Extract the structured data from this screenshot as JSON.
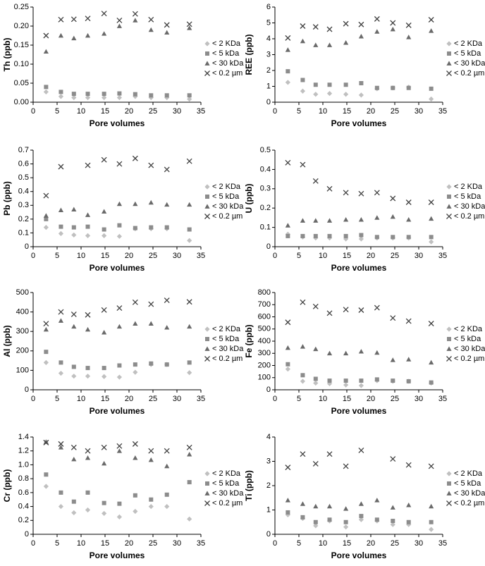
{
  "chart_data": [
    {
      "type": "scatter",
      "ylabel": "Th (ppb)",
      "xlabel": "Pore volumes",
      "legend": "right",
      "x": [
        2.7,
        5.8,
        8.5,
        11.4,
        14.8,
        18.0,
        21.3,
        24.6,
        27.9,
        32.6
      ],
      "xlim": [
        0,
        35
      ],
      "xticks": [
        0,
        5,
        10,
        15,
        20,
        25,
        30,
        35
      ],
      "ylim": [
        0,
        0.25
      ],
      "yticks": [
        {
          "value": 0,
          "label": "0.00"
        },
        0.05,
        {
          "value": 0.1,
          "label": "0.10"
        },
        0.15,
        {
          "value": 0.2,
          "label": "0.20"
        },
        0.25
      ],
      "series": [
        {
          "name": "< 2 KDa",
          "color": "#c0c0c0",
          "marker": "diamond",
          "values": [
            0.027,
            0.015,
            0.012,
            0.012,
            0.012,
            0.012,
            0.015,
            0.012,
            0.012,
            0.008
          ]
        },
        {
          "name": "< 5 kDa",
          "color": "#8c8c8c",
          "marker": "square",
          "values": [
            0.04,
            0.027,
            0.022,
            0.022,
            0.022,
            0.023,
            0.021,
            0.018,
            0.018,
            0.018
          ]
        },
        {
          "name": "< 30 kDa",
          "color": "#6a6a6a",
          "marker": "triangle",
          "values": [
            0.133,
            0.175,
            0.168,
            0.175,
            0.18,
            0.2,
            0.215,
            0.19,
            0.183,
            0.195
          ]
        },
        {
          "name": "< 0.2 µm",
          "color": "#404040",
          "marker": "cross",
          "values": [
            0.175,
            0.217,
            0.218,
            0.22,
            0.233,
            0.215,
            0.232,
            0.217,
            0.203,
            0.205
          ]
        }
      ]
    },
    {
      "type": "scatter",
      "ylabel": "REE (ppb)",
      "xlabel": "Pore volumes",
      "legend": "right",
      "x": [
        2.7,
        5.8,
        8.5,
        11.4,
        14.8,
        18.0,
        21.3,
        24.6,
        27.9,
        32.6
      ],
      "xlim": [
        0,
        35
      ],
      "xticks": [
        0,
        5,
        10,
        15,
        20,
        25,
        30,
        35
      ],
      "ylim": [
        0,
        6
      ],
      "yticks": [
        0,
        1,
        2,
        3,
        4,
        5,
        6
      ],
      "series": [
        {
          "name": "< 2 KDa",
          "color": "#c0c0c0",
          "marker": "diamond",
          "values": [
            1.25,
            0.7,
            0.5,
            0.55,
            0.5,
            0.45,
            0.85,
            0.9,
            0.95,
            0.2
          ]
        },
        {
          "name": "< 5 kDa",
          "color": "#8c8c8c",
          "marker": "square",
          "values": [
            1.95,
            1.4,
            1.1,
            1.1,
            1.1,
            1.2,
            0.9,
            0.9,
            0.9,
            0.85
          ]
        },
        {
          "name": "< 30 kDa",
          "color": "#6a6a6a",
          "marker": "triangle",
          "values": [
            3.3,
            3.85,
            3.6,
            3.6,
            3.75,
            4.15,
            4.45,
            4.6,
            4.1,
            4.5
          ]
        },
        {
          "name": "< 0.2 µm",
          "color": "#404040",
          "marker": "cross",
          "values": [
            4.05,
            4.8,
            4.75,
            4.6,
            4.95,
            4.9,
            5.25,
            5.0,
            4.85,
            5.2
          ]
        }
      ]
    },
    {
      "type": "scatter",
      "ylabel": "Pb (ppb)",
      "xlabel": "Pore volumes",
      "legend": "right",
      "x": [
        2.7,
        5.8,
        8.5,
        11.4,
        14.8,
        18.0,
        21.3,
        24.6,
        27.9,
        32.6
      ],
      "xlim": [
        0,
        35
      ],
      "xticks": [
        0,
        5,
        10,
        15,
        20,
        25,
        30,
        35
      ],
      "ylim": [
        0,
        0.7
      ],
      "yticks": [
        0,
        0.1,
        0.2,
        0.3,
        0.4,
        0.5,
        0.6,
        0.7
      ],
      "series": [
        {
          "name": "< 2 KDa",
          "color": "#c0c0c0",
          "marker": "diamond",
          "values": [
            0.14,
            0.095,
            0.085,
            0.08,
            0.08,
            0.075,
            0.13,
            0.13,
            0.13,
            0.045
          ]
        },
        {
          "name": "< 5 kDa",
          "color": "#8c8c8c",
          "marker": "square",
          "values": [
            0.2,
            0.145,
            0.14,
            0.145,
            0.125,
            0.155,
            0.135,
            0.14,
            0.14,
            0.125
          ]
        },
        {
          "name": "< 30 kDa",
          "color": "#6a6a6a",
          "marker": "triangle",
          "values": [
            0.225,
            0.265,
            0.27,
            0.23,
            0.255,
            0.31,
            0.31,
            0.32,
            0.305,
            0.305
          ]
        },
        {
          "name": "< 0.2 µm",
          "color": "#404040",
          "marker": "cross",
          "values": [
            0.37,
            0.58,
            null,
            0.59,
            0.63,
            0.6,
            0.64,
            0.59,
            0.56,
            0.62
          ]
        }
      ]
    },
    {
      "type": "scatter",
      "ylabel": "U (ppb)",
      "xlabel": "Pore volumes",
      "legend": "right",
      "x": [
        2.7,
        5.8,
        8.5,
        11.4,
        14.8,
        18.0,
        21.3,
        24.6,
        27.9,
        32.6
      ],
      "xlim": [
        0,
        35
      ],
      "xticks": [
        0,
        5,
        10,
        15,
        20,
        25,
        30,
        35
      ],
      "ylim": [
        0,
        0.5
      ],
      "yticks": [
        0,
        0.1,
        0.2,
        0.3,
        0.4,
        0.5
      ],
      "series": [
        {
          "name": "< 2 KDa",
          "color": "#c0c0c0",
          "marker": "diamond",
          "values": [
            0.065,
            0.05,
            0.045,
            0.045,
            0.04,
            0.04,
            0.045,
            0.045,
            0.045,
            0.025
          ]
        },
        {
          "name": "< 5 kDa",
          "color": "#8c8c8c",
          "marker": "square",
          "values": [
            0.055,
            0.055,
            0.055,
            0.055,
            0.055,
            0.06,
            0.05,
            0.05,
            0.05,
            0.05
          ]
        },
        {
          "name": "< 30 kDa",
          "color": "#6a6a6a",
          "marker": "triangle",
          "values": [
            0.11,
            0.135,
            0.135,
            0.135,
            0.14,
            0.14,
            0.15,
            0.155,
            0.14,
            0.145
          ]
        },
        {
          "name": "< 0.2 µm",
          "color": "#404040",
          "marker": "cross",
          "values": [
            0.435,
            0.425,
            0.34,
            0.3,
            0.28,
            0.275,
            0.28,
            0.25,
            0.23,
            0.23
          ]
        }
      ]
    },
    {
      "type": "scatter",
      "ylabel": "Al (ppb)",
      "xlabel": "Pore volumes",
      "legend": "right",
      "x": [
        2.7,
        5.8,
        8.5,
        11.4,
        14.8,
        18.0,
        21.3,
        24.6,
        27.9,
        32.6
      ],
      "xlim": [
        0,
        35
      ],
      "xticks": [
        0,
        5,
        10,
        15,
        20,
        25,
        30,
        35
      ],
      "ylim": [
        0,
        500
      ],
      "yticks": [
        0,
        100,
        200,
        300,
        400,
        500
      ],
      "series": [
        {
          "name": "< 2 KDa",
          "color": "#c0c0c0",
          "marker": "diamond",
          "values": [
            140,
            85,
            70,
            70,
            68,
            65,
            90,
            130,
            130,
            88
          ]
        },
        {
          "name": "< 5 kDa",
          "color": "#8c8c8c",
          "marker": "square",
          "values": [
            195,
            140,
            118,
            112,
            112,
            125,
            130,
            135,
            130,
            140
          ]
        },
        {
          "name": "< 30 kDa",
          "color": "#6a6a6a",
          "marker": "triangle",
          "values": [
            310,
            355,
            325,
            310,
            295,
            325,
            340,
            340,
            320,
            325
          ]
        },
        {
          "name": "< 0.2 µm",
          "color": "#404040",
          "marker": "cross",
          "values": [
            340,
            400,
            388,
            385,
            410,
            420,
            450,
            440,
            460,
            452
          ]
        }
      ]
    },
    {
      "type": "scatter",
      "ylabel": "Fe (ppb)",
      "xlabel": "Pore volumes",
      "legend": "right",
      "x": [
        2.7,
        5.8,
        8.5,
        11.4,
        14.8,
        18.0,
        21.3,
        24.6,
        27.9,
        32.6
      ],
      "xlim": [
        0,
        35
      ],
      "xticks": [
        0,
        5,
        10,
        15,
        20,
        25,
        30,
        35
      ],
      "ylim": [
        0,
        800
      ],
      "yticks": [
        0,
        100,
        200,
        300,
        400,
        500,
        600,
        700,
        800
      ],
      "series": [
        {
          "name": "< 2 KDa",
          "color": "#c0c0c0",
          "marker": "diamond",
          "values": [
            170,
            70,
            55,
            50,
            40,
            35,
            75,
            70,
            70,
            55
          ]
        },
        {
          "name": "< 5 kDa",
          "color": "#8c8c8c",
          "marker": "square",
          "values": [
            210,
            120,
            90,
            75,
            75,
            75,
            85,
            75,
            70,
            60
          ]
        },
        {
          "name": "< 30 kDa",
          "color": "#6a6a6a",
          "marker": "triangle",
          "values": [
            345,
            355,
            335,
            300,
            300,
            315,
            305,
            245,
            250,
            225
          ]
        },
        {
          "name": "< 0.2 µm",
          "color": "#404040",
          "marker": "cross",
          "values": [
            555,
            720,
            685,
            630,
            660,
            655,
            675,
            590,
            565,
            545
          ]
        }
      ]
    },
    {
      "type": "scatter",
      "ylabel": "Cr (ppb)",
      "xlabel": "Pore volumes",
      "legend": "right",
      "x": [
        2.7,
        5.8,
        8.5,
        11.4,
        14.8,
        18.0,
        21.3,
        24.6,
        27.9,
        32.6
      ],
      "xlim": [
        0,
        35
      ],
      "xticks": [
        0,
        5,
        10,
        15,
        20,
        25,
        30,
        35
      ],
      "ylim": [
        0,
        1.4
      ],
      "yticks": [
        0,
        0.2,
        0.4,
        0.6,
        0.8,
        {
          "value": 1,
          "label": "1.0"
        },
        1.2,
        1.4
      ],
      "series": [
        {
          "name": "< 2 KDa",
          "color": "#c0c0c0",
          "marker": "diamond",
          "values": [
            0.69,
            0.4,
            0.31,
            0.35,
            0.3,
            0.25,
            0.33,
            0.4,
            0.4,
            0.22
          ]
        },
        {
          "name": "< 5 kDa",
          "color": "#8c8c8c",
          "marker": "square",
          "values": [
            0.86,
            0.6,
            0.47,
            0.6,
            0.45,
            0.44,
            0.56,
            0.5,
            0.57,
            0.75
          ]
        },
        {
          "name": "< 30 kDa",
          "color": "#6a6a6a",
          "marker": "triangle",
          "values": [
            1.33,
            1.25,
            1.08,
            1.1,
            1.02,
            1.2,
            1.1,
            1.07,
            0.98,
            1.15
          ]
        },
        {
          "name": "< 0.2 µm",
          "color": "#404040",
          "marker": "cross",
          "values": [
            1.32,
            1.3,
            1.25,
            1.2,
            1.25,
            1.27,
            1.3,
            1.2,
            1.2,
            1.25
          ]
        }
      ]
    },
    {
      "type": "scatter",
      "ylabel": "Ti (ppb)",
      "xlabel": "Pore volumes",
      "legend": "right",
      "x": [
        2.7,
        5.8,
        8.5,
        11.4,
        14.8,
        18.0,
        21.3,
        24.6,
        27.9,
        32.6
      ],
      "xlim": [
        0,
        35
      ],
      "xticks": [
        0,
        5,
        10,
        15,
        20,
        25,
        30,
        35
      ],
      "ylim": [
        0,
        4
      ],
      "yticks": [
        0,
        1,
        2,
        3,
        4
      ],
      "series": [
        {
          "name": "< 2 KDa",
          "color": "#c0c0c0",
          "marker": "diamond",
          "values": [
            0.8,
            0.65,
            0.35,
            0.55,
            0.3,
            0.6,
            0.55,
            0.4,
            0.4,
            0.2
          ]
        },
        {
          "name": "< 5 kDa",
          "color": "#8c8c8c",
          "marker": "square",
          "values": [
            0.9,
            0.7,
            0.5,
            0.6,
            0.5,
            0.75,
            0.6,
            0.55,
            0.5,
            0.5
          ]
        },
        {
          "name": "< 30 kDa",
          "color": "#6a6a6a",
          "marker": "triangle",
          "values": [
            1.4,
            1.25,
            1.15,
            1.15,
            1.05,
            1.25,
            1.4,
            1.1,
            1.2,
            1.15
          ]
        },
        {
          "name": "< 0.2 µm",
          "color": "#404040",
          "marker": "cross",
          "values": [
            2.75,
            3.3,
            2.9,
            3.3,
            2.8,
            3.45,
            null,
            3.1,
            2.85,
            2.8
          ]
        }
      ]
    }
  ]
}
